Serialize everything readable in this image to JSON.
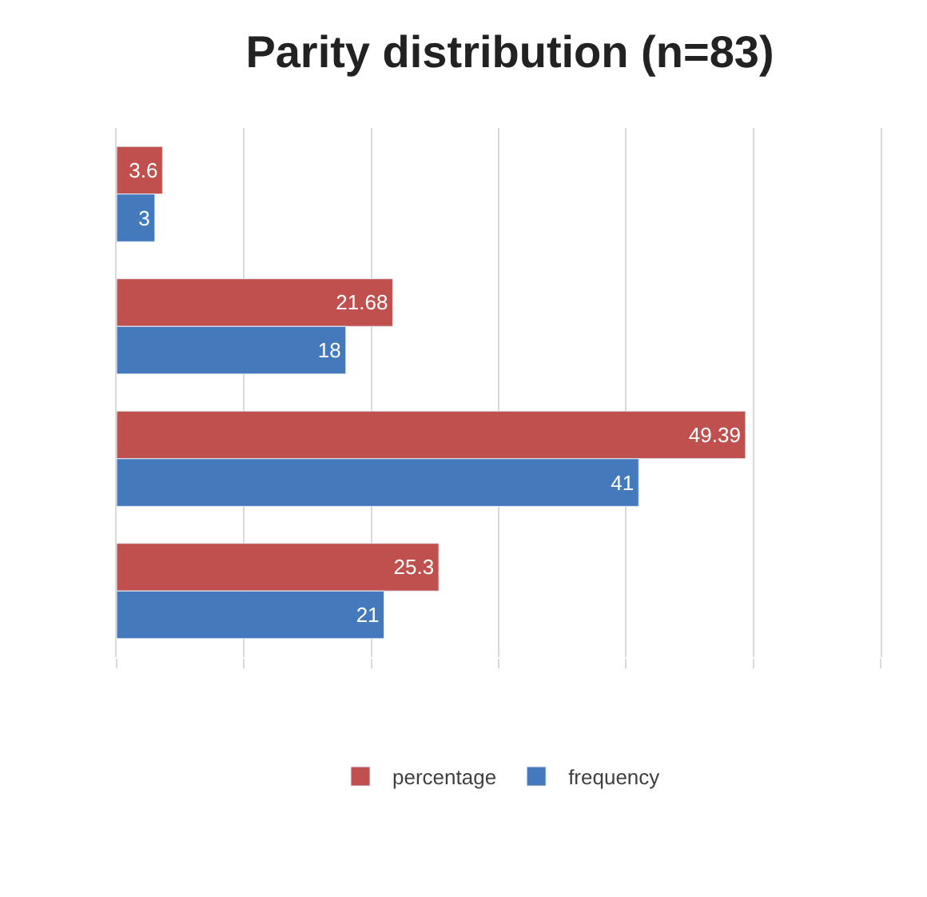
{
  "chart_data": {
    "type": "bar",
    "orientation": "horizontal",
    "title": "Parity distribution (n=83)",
    "categories": [
      null,
      null,
      null,
      null
    ],
    "series": [
      {
        "name": "percentage",
        "color": "#c0504d",
        "values": [
          3.6,
          21.68,
          49.39,
          25.3
        ]
      },
      {
        "name": "frequency",
        "color": "#4479bc",
        "values": [
          3,
          18,
          41,
          21
        ]
      }
    ],
    "xlim": [
      0,
      60
    ],
    "xticks": [
      {
        "value": 0,
        "label": null
      },
      {
        "value": 10,
        "label": null
      },
      {
        "value": 20,
        "label": null
      },
      {
        "value": 30,
        "label": null
      },
      {
        "value": 40,
        "label": null
      },
      {
        "value": 50,
        "label": null
      },
      {
        "value": 60,
        "label": null
      }
    ],
    "grid": "x",
    "legend": "bottom",
    "data_labels": true
  }
}
